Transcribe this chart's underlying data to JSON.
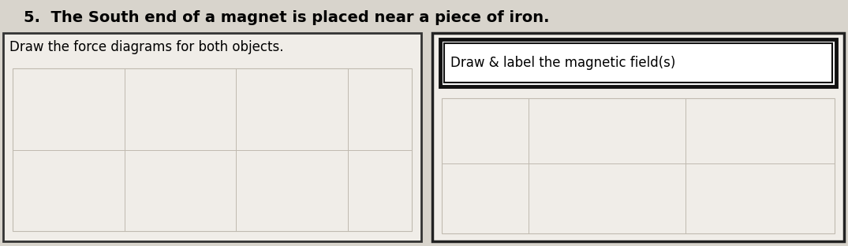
{
  "title": "5.  The South end of a magnet is placed near a piece of iron.",
  "title_fontsize": 14,
  "title_fontweight": "bold",
  "left_box_label": "Draw the force diagrams for both objects.",
  "right_box_label": "Draw & label the magnetic field(s)",
  "label_fontsize": 12,
  "bg_color": "#d8d4cc",
  "box_bg": "#f0ede8",
  "inner_label_bg": "#ffffff",
  "grid_color": "#c0bab0",
  "grid_lw": 0.7
}
